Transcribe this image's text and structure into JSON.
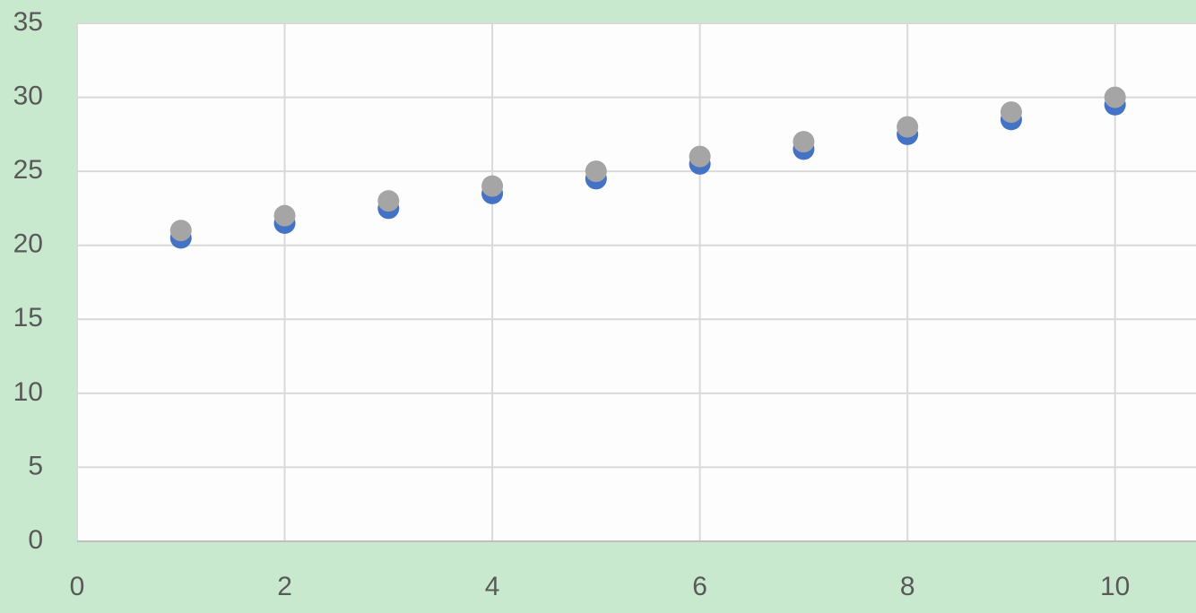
{
  "chart_data": {
    "type": "scatter",
    "xlim": [
      0,
      10.78
    ],
    "xticks": [
      0,
      2,
      4,
      6,
      8,
      10
    ],
    "ylim": [
      0,
      35
    ],
    "yticks": [
      0,
      5,
      10,
      15,
      20,
      25,
      30,
      35
    ],
    "grid": true,
    "series": [
      {
        "color": "#4472c4",
        "x": [
          1,
          2,
          3,
          4,
          5,
          6,
          7,
          8,
          9,
          10
        ],
        "values": [
          20.5,
          21.5,
          22.5,
          23.5,
          24.5,
          25.5,
          26.5,
          27.5,
          28.5,
          29.5
        ]
      },
      {
        "color": "#a5a5a5",
        "x": [
          1,
          2,
          3,
          4,
          5,
          6,
          7,
          8,
          9,
          10
        ],
        "values": [
          21,
          22,
          23,
          24,
          25,
          26,
          27,
          28,
          29,
          30
        ]
      }
    ]
  }
}
